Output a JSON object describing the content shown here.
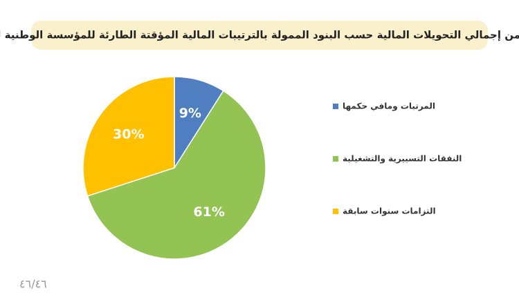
{
  "chart_data": {
    "type": "pie",
    "title": "نسبة من إجمالي التحويلات المالية حسب البنود الممولة بالترتيبات المالية المؤقتة الطارئة للمؤسسة الوطنية للنفط",
    "categories": [
      "المرتبات ومافي حكمها",
      "النفقات التسييرية والتشغيلية",
      "التزامات سنوات سابقة"
    ],
    "values": [
      9,
      61,
      30
    ],
    "value_labels": [
      "9%",
      "61%",
      "30%"
    ],
    "colors": [
      "#4f7fc1",
      "#92c353",
      "#ffc000"
    ],
    "footer": "٤٦/٤٦"
  }
}
